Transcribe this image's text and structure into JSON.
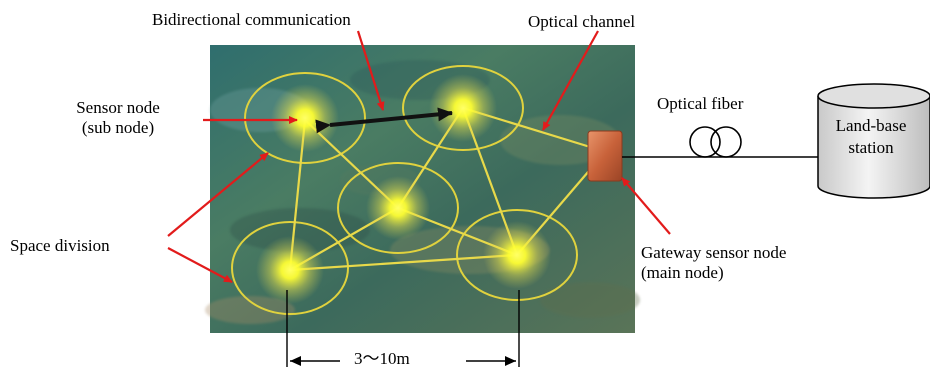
{
  "labels": {
    "bidirectional": "Bidirectional communication",
    "optical_channel": "Optical channel",
    "optical_fiber": "Optical fiber",
    "sensor_node_line1": "Sensor node",
    "sensor_node_line2": "(sub node)",
    "space_division": "Space division",
    "gateway_line1": "Gateway sensor node",
    "gateway_line2": "(main node)",
    "land_base_line1": "Land-base",
    "land_base_line2": "station",
    "distance": "3～10m"
  },
  "colors": {
    "annotation_arrow": "#e21b1b",
    "node_glow": "#ffff33",
    "link_line": "#e8d94a",
    "water_bg": "#3f6f66",
    "gateway_box": "#c8623a"
  }
}
